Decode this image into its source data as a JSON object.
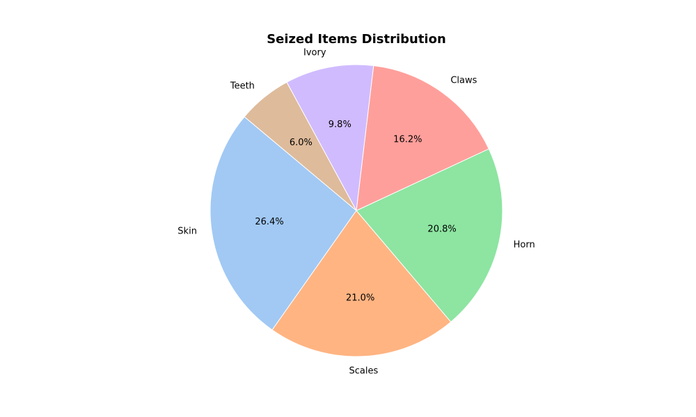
{
  "chart_data": {
    "type": "pie",
    "title": "Seized Items Distribution",
    "start_angle_deg": 140,
    "direction": "counterclockwise",
    "slices": [
      {
        "label": "Skin",
        "percent": 26.4,
        "percent_label": "26.4%",
        "color": "#a1c9f4"
      },
      {
        "label": "Scales",
        "percent": 21.0,
        "percent_label": "21.0%",
        "color": "#ffb482"
      },
      {
        "label": "Horn",
        "percent": 20.8,
        "percent_label": "20.8%",
        "color": "#8de5a1"
      },
      {
        "label": "Claws",
        "percent": 16.2,
        "percent_label": "16.2%",
        "color": "#ff9f9b"
      },
      {
        "label": "Ivory",
        "percent": 9.8,
        "percent_label": "9.8%",
        "color": "#d0bbff"
      },
      {
        "label": "Teeth",
        "percent": 6.0,
        "percent_label": "6.0%",
        "color": "#debb9b"
      }
    ]
  }
}
